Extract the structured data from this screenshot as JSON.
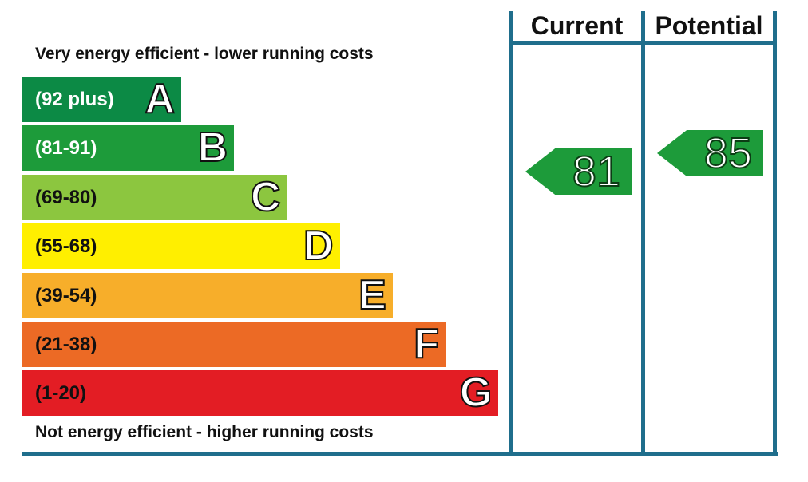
{
  "chart_data": {
    "type": "bar",
    "captions": {
      "top": "Very energy efficient - lower running costs",
      "bottom": "Not energy efficient - higher running costs"
    },
    "bands": [
      {
        "range": "(92 plus)",
        "letter": "A",
        "color": "#0c8a45",
        "range_text_color": "#ffffff"
      },
      {
        "range": "(81-91)",
        "letter": "B",
        "color": "#1d9b3a",
        "range_text_color": "#ffffff"
      },
      {
        "range": "(69-80)",
        "letter": "C",
        "color": "#8cc63f",
        "range_text_color": "#111111"
      },
      {
        "range": "(55-68)",
        "letter": "D",
        "color": "#ffef00",
        "range_text_color": "#111111"
      },
      {
        "range": "(39-54)",
        "letter": "E",
        "color": "#f7ae2a",
        "range_text_color": "#111111"
      },
      {
        "range": "(21-38)",
        "letter": "F",
        "color": "#ec6a25",
        "range_text_color": "#111111"
      },
      {
        "range": "(1-20)",
        "letter": "G",
        "color": "#e31d24",
        "range_text_color": "#111111"
      }
    ],
    "columns": [
      {
        "header": "Current",
        "value": 81,
        "label": "81",
        "band": "B",
        "color": "#1d9b3a"
      },
      {
        "header": "Potential",
        "value": 85,
        "label": "85",
        "band": "B",
        "color": "#1d9b3a"
      }
    ],
    "border_color": "#1f6e8c"
  }
}
